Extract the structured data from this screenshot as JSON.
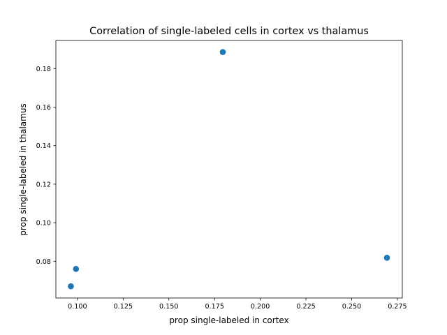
{
  "chart_data": {
    "type": "scatter",
    "title": "Correlation of single-labeled cells in cortex vs thalamus",
    "xlabel": "prop single-labeled in cortex",
    "ylabel": "prop single-labeled in thalamus",
    "xlim": [
      0.0882,
      0.2777
    ],
    "ylim": [
      0.0609,
      0.1946
    ],
    "xticks": [
      0.1,
      0.125,
      0.15,
      0.175,
      0.2,
      0.225,
      0.25,
      0.275
    ],
    "xtick_labels": [
      "0.100",
      "0.125",
      "0.150",
      "0.175",
      "0.200",
      "0.225",
      "0.250",
      "0.275"
    ],
    "yticks": [
      0.08,
      0.1,
      0.12,
      0.14,
      0.16,
      0.18
    ],
    "ytick_labels": [
      "0.08",
      "0.10",
      "0.12",
      "0.14",
      "0.16",
      "0.18"
    ],
    "grid": false,
    "points": [
      {
        "x": 0.0964,
        "y": 0.067
      },
      {
        "x": 0.0992,
        "y": 0.076
      },
      {
        "x": 0.1795,
        "y": 0.1886
      },
      {
        "x": 0.2693,
        "y": 0.0818
      }
    ],
    "marker_color": "#1f77b4"
  }
}
